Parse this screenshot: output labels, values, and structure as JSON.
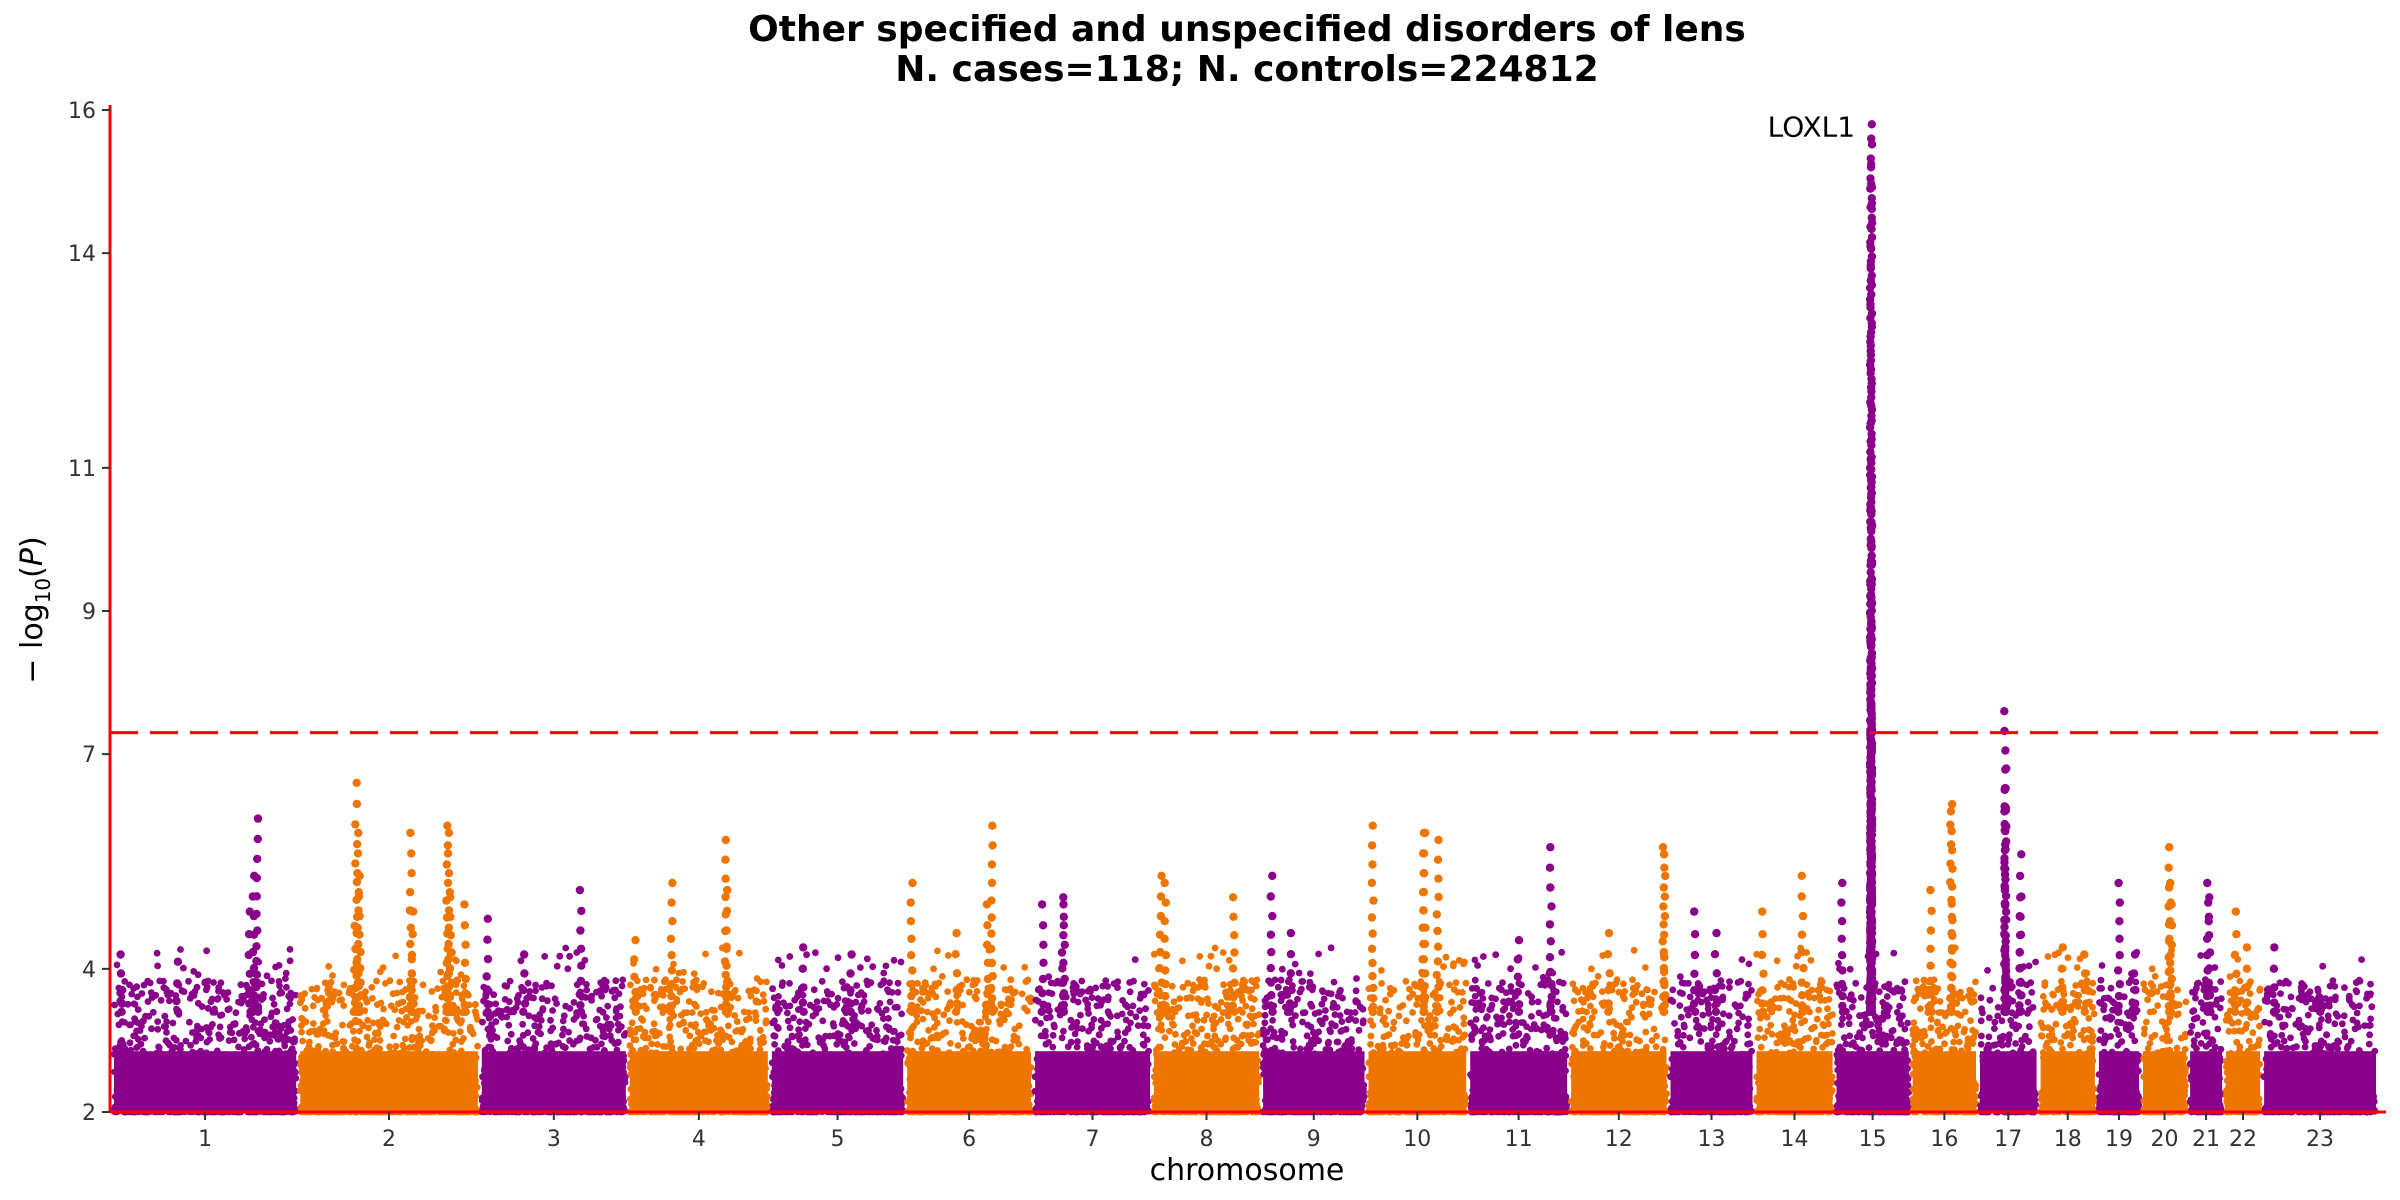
{
  "chart_data": {
    "type": "scatter",
    "subtype": "manhattan",
    "title": "Other specified and unspecified disorders of lens",
    "subtitle": "N. cases=118; N. controls=224812",
    "xlabel": "chromosome",
    "ylabel": "−log10(P)",
    "ylim": [
      2,
      16
    ],
    "y_ticks": [
      2,
      4,
      7,
      9,
      11,
      14,
      16
    ],
    "threshold": 7.3,
    "colors": {
      "odd": "#8b008b",
      "even": "#ee7600",
      "axis": "#ff0000",
      "threshold": "#ff0000"
    },
    "chromosomes": [
      {
        "label": "1",
        "size": 249,
        "peaks": [
          [
            0.78,
            6.1
          ],
          [
            0.76,
            5.3
          ],
          [
            0.74,
            4.8
          ],
          [
            0.05,
            4.2
          ],
          [
            0.35,
            4.1
          ]
        ]
      },
      {
        "label": "2",
        "size": 243,
        "peaks": [
          [
            0.32,
            6.6
          ],
          [
            0.33,
            5.9
          ],
          [
            0.34,
            5.3
          ],
          [
            0.31,
            4.6
          ],
          [
            0.82,
            6.0
          ],
          [
            0.83,
            5.9
          ],
          [
            0.84,
            5.0
          ],
          [
            0.92,
            4.9
          ],
          [
            0.62,
            5.9
          ],
          [
            0.63,
            4.8
          ]
        ]
      },
      {
        "label": "3",
        "size": 198,
        "peaks": [
          [
            0.68,
            5.1
          ],
          [
            0.3,
            4.2
          ],
          [
            0.05,
            4.7
          ]
        ]
      },
      {
        "label": "4",
        "size": 190,
        "peaks": [
          [
            0.69,
            5.8
          ],
          [
            0.7,
            5.1
          ],
          [
            0.31,
            5.2
          ],
          [
            0.05,
            4.4
          ]
        ]
      },
      {
        "label": "5",
        "size": 181,
        "peaks": [
          [
            0.25,
            4.3
          ],
          [
            0.6,
            4.2
          ]
        ]
      },
      {
        "label": "6",
        "size": 171,
        "peaks": [
          [
            0.68,
            6.0
          ],
          [
            0.64,
            4.9
          ],
          [
            0.05,
            5.2
          ],
          [
            0.4,
            4.5
          ]
        ]
      },
      {
        "label": "7",
        "size": 159,
        "peaks": [
          [
            0.25,
            5.0
          ],
          [
            0.26,
            4.9
          ],
          [
            0.08,
            4.9
          ]
        ]
      },
      {
        "label": "8",
        "size": 146,
        "peaks": [
          [
            0.08,
            5.3
          ],
          [
            0.12,
            5.2
          ],
          [
            0.75,
            5.0
          ]
        ]
      },
      {
        "label": "9",
        "size": 141,
        "peaks": [
          [
            0.1,
            5.3
          ],
          [
            0.28,
            4.5
          ]
        ]
      },
      {
        "label": "10",
        "size": 136,
        "peaks": [
          [
            0.56,
            5.9
          ],
          [
            0.57,
            5.9
          ],
          [
            0.7,
            5.8
          ],
          [
            0.06,
            6.0
          ]
        ]
      },
      {
        "label": "11",
        "size": 135,
        "peaks": [
          [
            0.82,
            5.7
          ],
          [
            0.5,
            4.4
          ]
        ]
      },
      {
        "label": "12",
        "size": 133,
        "peaks": [
          [
            0.95,
            5.7
          ],
          [
            0.96,
            5.6
          ],
          [
            0.4,
            4.5
          ]
        ]
      },
      {
        "label": "13",
        "size": 115,
        "peaks": [
          [
            0.3,
            4.8
          ],
          [
            0.55,
            4.5
          ]
        ]
      },
      {
        "label": "14",
        "size": 107,
        "peaks": [
          [
            0.6,
            5.3
          ],
          [
            0.1,
            4.8
          ]
        ]
      },
      {
        "label": "15",
        "size": 102,
        "peaks": [
          [
            0.48,
            15.8
          ],
          [
            0.48,
            15.6
          ],
          [
            0.48,
            15.2
          ],
          [
            0.48,
            14.9
          ],
          [
            0.48,
            11.0
          ],
          [
            0.48,
            10.8
          ],
          [
            0.48,
            10.2
          ],
          [
            0.48,
            9.1
          ],
          [
            0.48,
            8.5
          ],
          [
            0.48,
            8.2
          ],
          [
            0.48,
            7.9
          ],
          [
            0.48,
            7.7
          ],
          [
            0.48,
            7.3
          ],
          [
            0.48,
            6.8
          ],
          [
            0.48,
            6.3
          ],
          [
            0.48,
            5.9
          ],
          [
            0.48,
            5.2
          ],
          [
            0.1,
            5.2
          ]
        ]
      },
      {
        "label": "16",
        "size": 90,
        "peaks": [
          [
            0.6,
            6.3
          ],
          [
            0.61,
            6.2
          ],
          [
            0.3,
            5.1
          ]
        ]
      },
      {
        "label": "17",
        "size": 81,
        "peaks": [
          [
            0.45,
            7.6
          ],
          [
            0.45,
            6.8
          ],
          [
            0.45,
            6.5
          ],
          [
            0.45,
            6.2
          ],
          [
            0.7,
            5.6
          ],
          [
            0.7,
            5.0
          ]
        ]
      },
      {
        "label": "18",
        "size": 78,
        "peaks": [
          [
            0.4,
            4.3
          ],
          [
            0.8,
            4.2
          ]
        ]
      },
      {
        "label": "19",
        "size": 59,
        "peaks": [
          [
            0.5,
            5.2
          ],
          [
            0.85,
            4.2
          ]
        ]
      },
      {
        "label": "20",
        "size": 63,
        "peaks": [
          [
            0.6,
            5.7
          ],
          [
            0.62,
            5.2
          ],
          [
            0.64,
            4.9
          ]
        ]
      },
      {
        "label": "21",
        "size": 48,
        "peaks": [
          [
            0.55,
            5.2
          ],
          [
            0.6,
            5.0
          ]
        ]
      },
      {
        "label": "22",
        "size": 51,
        "peaks": [
          [
            0.3,
            4.8
          ],
          [
            0.6,
            4.3
          ]
        ]
      },
      {
        "label": "23",
        "size": 155,
        "peaks": [
          [
            0.1,
            4.3
          ],
          [
            0.5,
            3.6
          ]
        ]
      }
    ],
    "annotations": [
      {
        "label": "LOXL1",
        "chromosome": "15",
        "y": 15.8
      }
    ]
  }
}
